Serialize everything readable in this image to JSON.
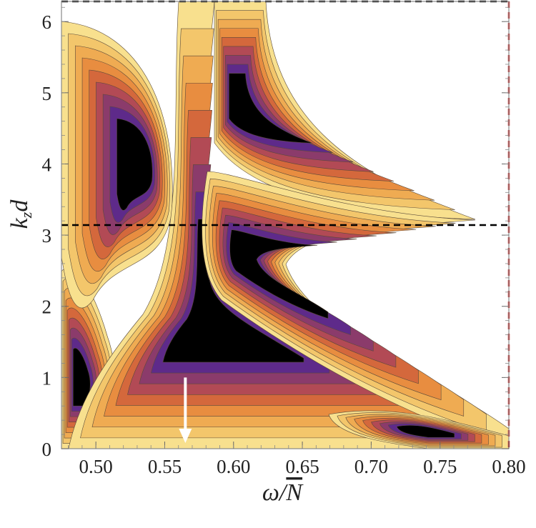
{
  "chart_data": {
    "type": "heatmap",
    "title": "",
    "xlabel": "ω/N̄",
    "ylabel": "k_z d",
    "xlim": [
      0.475,
      0.8
    ],
    "ylim": [
      0,
      6.283
    ],
    "x_ticks": [
      "0.50",
      "0.55",
      "0.60",
      "0.65",
      "0.70",
      "0.75",
      "0.80"
    ],
    "x_tick_values": [
      0.5,
      0.55,
      0.6,
      0.65,
      0.7,
      0.75,
      0.8
    ],
    "y_ticks": [
      "0",
      "1",
      "2",
      "3",
      "4",
      "5",
      "6"
    ],
    "y_tick_values": [
      0,
      1,
      2,
      3,
      4,
      5,
      6
    ],
    "reference_lines": [
      {
        "orientation": "horizontal",
        "value": 3.1416,
        "style": "dashed",
        "color": "#000000"
      },
      {
        "orientation": "horizontal",
        "value": 6.2832,
        "style": "dashed",
        "color": "#000000"
      },
      {
        "orientation": "vertical",
        "value": 0.8,
        "style": "dashed",
        "color": "#cc2222"
      }
    ],
    "arrow_marker": {
      "x": 0.565,
      "y_from": 1.0,
      "y_to": 0.1,
      "color": "#ffffff"
    },
    "contour_colors": [
      "#ffffff",
      "#f8e08e",
      "#f3c66b",
      "#efab52",
      "#e88d40",
      "#d4683c",
      "#b24a55",
      "#8b3b6b",
      "#5e2a8a",
      "#000000"
    ],
    "grid": false,
    "legend": "none"
  }
}
